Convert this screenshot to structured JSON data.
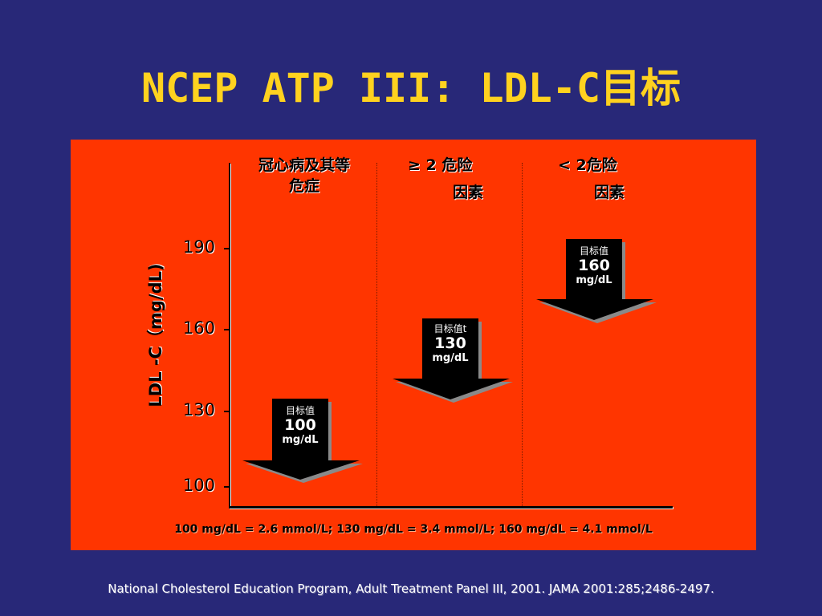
{
  "slide": {
    "title": "NCEP ATP III: LDL-C目标",
    "source": "National Cholesterol Education Program, Adult Treatment Panel III, 2001. JAMA 2001:285;2486-2497."
  },
  "chart_data": {
    "type": "other",
    "ylabel": "LDL -C（mg/dL)",
    "yticks": [
      "190",
      "160",
      "130",
      "100"
    ],
    "groups": [
      {
        "header_line1": "冠心病及其等",
        "header_line2": "危症",
        "target_label": "目标值",
        "target_value": "100",
        "unit": "mg/dL"
      },
      {
        "header_line1": "≥ 2 危险",
        "header_line2": "因素",
        "target_label": "目标值t",
        "target_value": "130",
        "unit": "mg/dL"
      },
      {
        "header_line1": "< 2危险",
        "header_line2": "因素",
        "target_label": "目标值",
        "target_value": "160",
        "unit": "mg/dL"
      }
    ],
    "conversion_note": "100 mg/dL = 2.6 mmol/L; 130 mg/dL = 3.4 mmol/L; 160 mg/dL = 4.1 mmol/L"
  },
  "colors": {
    "background": "#282878",
    "title": "#FFD21F",
    "panel": "#FF3500",
    "arrow": "#000000"
  }
}
